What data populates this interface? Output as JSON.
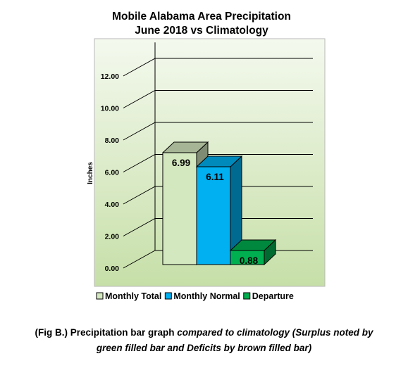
{
  "chart_data": {
    "type": "bar",
    "title": "Mobile Alabama Area Precipitation",
    "subtitle": "June 2018 vs Climatology",
    "ylabel": "Inches",
    "xlabel": "",
    "ylim": [
      0,
      13
    ],
    "yticks": [
      "0.00",
      "2.00",
      "4.00",
      "6.00",
      "8.00",
      "10.00",
      "12.00"
    ],
    "grid": true,
    "legend_position": "bottom",
    "series": [
      {
        "name": "Monthly Total",
        "value": 6.99,
        "label": "6.99",
        "color": "#d4e8bf"
      },
      {
        "name": "Monthly Normal",
        "value": 6.11,
        "label": "6.11",
        "color": "#00b0f0"
      },
      {
        "name": "Departure",
        "value": 0.88,
        "label": "0.88",
        "color": "#00b050"
      }
    ]
  },
  "caption": {
    "part1": "(Fig B.) Precipitation bar graph ",
    "part2": "compared to climatology (Surplus noted by",
    "line2": "green filled bar and Deficits by brown filled bar)"
  }
}
